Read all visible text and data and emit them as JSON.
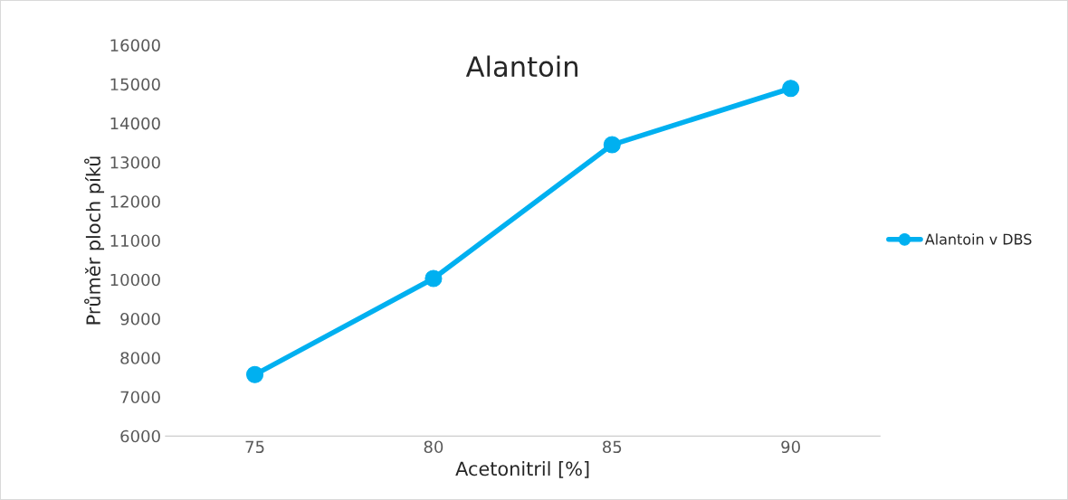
{
  "chart_data": {
    "type": "line",
    "title": "Alantoin",
    "xlabel": "Acetonitril [%]",
    "ylabel": "Průměr ploch píků",
    "categories": [
      "75",
      "80",
      "85",
      "90"
    ],
    "series": [
      {
        "name": "Alantoin v DBS",
        "color": "#00b0f0",
        "values": [
          7570,
          10030,
          13450,
          14890
        ]
      }
    ],
    "ylim": [
      6000,
      16000
    ],
    "yticks": [
      6000,
      7000,
      8000,
      9000,
      10000,
      11000,
      12000,
      13000,
      14000,
      15000,
      16000
    ],
    "grid": false,
    "legend": "right",
    "marker": "circle",
    "line_style": "solid"
  }
}
